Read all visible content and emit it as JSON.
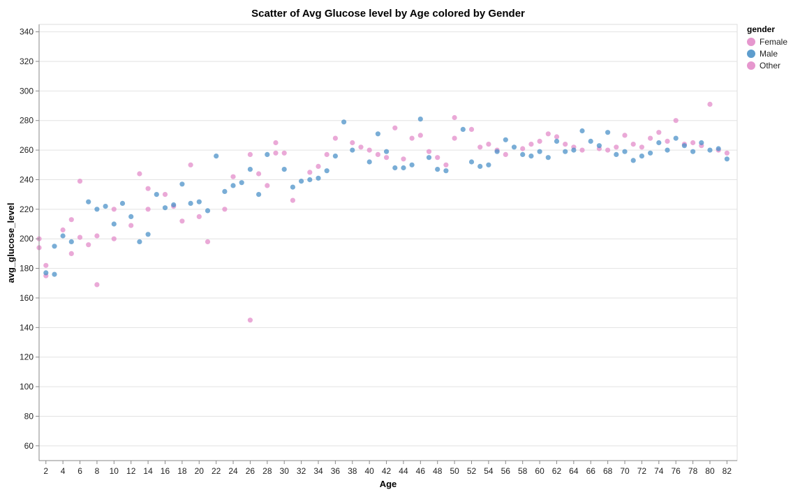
{
  "chart_data": {
    "type": "scatter",
    "title": "Scatter of Avg Glucose level by Age colored by Gender",
    "xlabel": "Age",
    "ylabel": "avg_glucose_level",
    "xlim": [
      1.2,
      83.2
    ],
    "ylim": [
      50,
      345
    ],
    "x_ticks": [
      2,
      4,
      6,
      8,
      10,
      12,
      14,
      16,
      18,
      20,
      22,
      24,
      26,
      28,
      30,
      32,
      34,
      36,
      38,
      40,
      42,
      44,
      46,
      48,
      50,
      52,
      54,
      56,
      58,
      60,
      62,
      64,
      66,
      68,
      70,
      72,
      74,
      76,
      78,
      80,
      82
    ],
    "y_ticks": [
      60,
      80,
      100,
      120,
      140,
      160,
      180,
      200,
      220,
      240,
      260,
      280,
      300,
      320,
      340
    ],
    "grid": true,
    "x_grid": false,
    "legend": {
      "title": "gender",
      "position": "top-right",
      "entries": [
        {
          "label": "Female",
          "color": "#e38cc9"
        },
        {
          "label": "Male",
          "color": "#4c92c8"
        },
        {
          "label": "Other",
          "color": "#e38cc9"
        }
      ]
    },
    "point_opacity": 0.75,
    "series": [
      {
        "name": "Female",
        "color": "#e38cc9",
        "points": [
          [
            1.2,
            200
          ],
          [
            1.2,
            194
          ],
          [
            2,
            182
          ],
          [
            2,
            175
          ],
          [
            4,
            206
          ],
          [
            5,
            190
          ],
          [
            5,
            213
          ],
          [
            6,
            239
          ],
          [
            6,
            201
          ],
          [
            7,
            196
          ],
          [
            8,
            202
          ],
          [
            8,
            169
          ],
          [
            10,
            220
          ],
          [
            10,
            200
          ],
          [
            12,
            209
          ],
          [
            13,
            244
          ],
          [
            14,
            234
          ],
          [
            14,
            220
          ],
          [
            16,
            230
          ],
          [
            17,
            222
          ],
          [
            18,
            212
          ],
          [
            19,
            250
          ],
          [
            20,
            215
          ],
          [
            21,
            198
          ],
          [
            23,
            220
          ],
          [
            24,
            242
          ],
          [
            26,
            257
          ],
          [
            27,
            244
          ],
          [
            28,
            236
          ],
          [
            29,
            265
          ],
          [
            29,
            258
          ],
          [
            30,
            258
          ],
          [
            31,
            226
          ],
          [
            33,
            245
          ],
          [
            34,
            249
          ],
          [
            35,
            257
          ],
          [
            36,
            268
          ],
          [
            38,
            265
          ],
          [
            39,
            262
          ],
          [
            40,
            260
          ],
          [
            41,
            257
          ],
          [
            42,
            255
          ],
          [
            43,
            275
          ],
          [
            44,
            254
          ],
          [
            45,
            268
          ],
          [
            46,
            270
          ],
          [
            47,
            259
          ],
          [
            48,
            255
          ],
          [
            49,
            250
          ],
          [
            50,
            282
          ],
          [
            50,
            268
          ],
          [
            52,
            274
          ],
          [
            53,
            262
          ],
          [
            54,
            264
          ],
          [
            55,
            260
          ],
          [
            56,
            257
          ],
          [
            58,
            261
          ],
          [
            59,
            264
          ],
          [
            60,
            266
          ],
          [
            61,
            271
          ],
          [
            62,
            269
          ],
          [
            63,
            264
          ],
          [
            64,
            262
          ],
          [
            65,
            260
          ],
          [
            67,
            261
          ],
          [
            68,
            260
          ],
          [
            69,
            262
          ],
          [
            70,
            270
          ],
          [
            71,
            264
          ],
          [
            72,
            262
          ],
          [
            73,
            268
          ],
          [
            74,
            272
          ],
          [
            75,
            266
          ],
          [
            76,
            280
          ],
          [
            77,
            264
          ],
          [
            78,
            265
          ],
          [
            79,
            263
          ],
          [
            80,
            291
          ],
          [
            81,
            260
          ],
          [
            82,
            258
          ]
        ]
      },
      {
        "name": "Male",
        "color": "#4c92c8",
        "points": [
          [
            2,
            177
          ],
          [
            3,
            195
          ],
          [
            3,
            176
          ],
          [
            4,
            202
          ],
          [
            5,
            198
          ],
          [
            7,
            225
          ],
          [
            8,
            220
          ],
          [
            9,
            222
          ],
          [
            10,
            210
          ],
          [
            11,
            224
          ],
          [
            12,
            215
          ],
          [
            13,
            198
          ],
          [
            14,
            203
          ],
          [
            15,
            230
          ],
          [
            16,
            221
          ],
          [
            17,
            223
          ],
          [
            18,
            237
          ],
          [
            19,
            224
          ],
          [
            20,
            225
          ],
          [
            21,
            219
          ],
          [
            22,
            256
          ],
          [
            23,
            232
          ],
          [
            24,
            236
          ],
          [
            25,
            238
          ],
          [
            26,
            247
          ],
          [
            27,
            230
          ],
          [
            28,
            257
          ],
          [
            30,
            247
          ],
          [
            31,
            235
          ],
          [
            32,
            239
          ],
          [
            33,
            240
          ],
          [
            34,
            241
          ],
          [
            35,
            246
          ],
          [
            36,
            256
          ],
          [
            37,
            279
          ],
          [
            38,
            260
          ],
          [
            40,
            252
          ],
          [
            41,
            271
          ],
          [
            42,
            259
          ],
          [
            43,
            248
          ],
          [
            44,
            248
          ],
          [
            45,
            250
          ],
          [
            46,
            281
          ],
          [
            47,
            255
          ],
          [
            48,
            247
          ],
          [
            49,
            246
          ],
          [
            51,
            274
          ],
          [
            52,
            252
          ],
          [
            53,
            249
          ],
          [
            54,
            250
          ],
          [
            55,
            259
          ],
          [
            56,
            267
          ],
          [
            57,
            262
          ],
          [
            58,
            257
          ],
          [
            59,
            256
          ],
          [
            60,
            259
          ],
          [
            61,
            255
          ],
          [
            62,
            266
          ],
          [
            63,
            259
          ],
          [
            64,
            260
          ],
          [
            65,
            273
          ],
          [
            66,
            266
          ],
          [
            67,
            263
          ],
          [
            68,
            272
          ],
          [
            69,
            257
          ],
          [
            70,
            259
          ],
          [
            71,
            253
          ],
          [
            72,
            256
          ],
          [
            73,
            258
          ],
          [
            74,
            265
          ],
          [
            75,
            260
          ],
          [
            76,
            268
          ],
          [
            77,
            263
          ],
          [
            78,
            259
          ],
          [
            79,
            265
          ],
          [
            80,
            260
          ],
          [
            81,
            261
          ],
          [
            82,
            254
          ]
        ]
      },
      {
        "name": "Other",
        "color": "#e38cc9",
        "points": [
          [
            26,
            145
          ]
        ]
      }
    ]
  }
}
